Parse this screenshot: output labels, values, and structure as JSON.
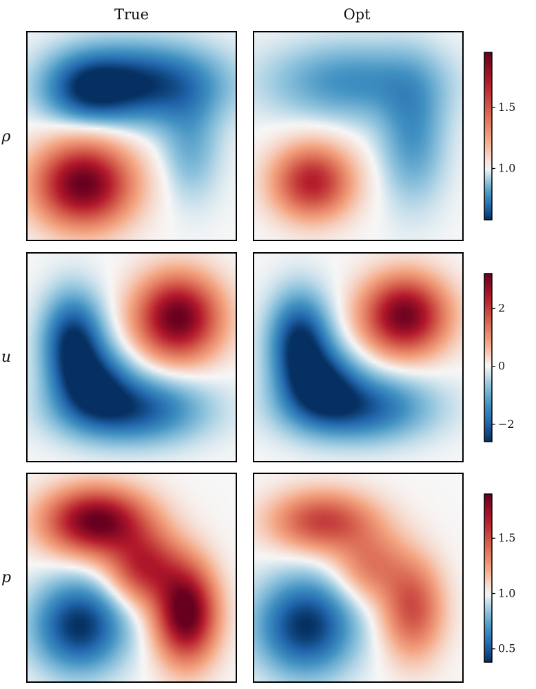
{
  "column_titles": [
    "True",
    "Opt"
  ],
  "row_labels": [
    "ρ",
    "u",
    "p"
  ],
  "colors": {
    "colormap": "RdBu_r",
    "dark_blue": "#053061",
    "blue": "#2166ac",
    "light_blue": "#92c5de",
    "white": "#f7f7f7",
    "light_red": "#f4a582",
    "red": "#b2182b",
    "dark_red": "#67001f",
    "frame": "#000000"
  },
  "chart_data": [
    {
      "type": "heatmap",
      "variable": "ρ",
      "colorbar": {
        "range": [
          0.58,
          1.95
        ],
        "ticks": [
          1.0,
          1.5
        ],
        "tick_labels": [
          "1.0",
          "1.5"
        ]
      },
      "panels": [
        {
          "column": "True",
          "background": 1.0,
          "features": [
            {
              "x": 0.27,
              "y": 0.27,
              "sx": 0.16,
              "sy": 0.14,
              "value": 1.95
            },
            {
              "x": 0.55,
              "y": 0.75,
              "sx": 0.26,
              "sy": 0.13,
              "value": 0.6
            },
            {
              "x": 0.28,
              "y": 0.72,
              "sx": 0.14,
              "sy": 0.12,
              "value": 0.75
            },
            {
              "x": 0.78,
              "y": 0.45,
              "sx": 0.1,
              "sy": 0.18,
              "value": 0.85
            }
          ]
        },
        {
          "column": "Opt",
          "background": 1.0,
          "features": [
            {
              "x": 0.28,
              "y": 0.28,
              "sx": 0.13,
              "sy": 0.12,
              "value": 1.7
            },
            {
              "x": 0.47,
              "y": 0.76,
              "sx": 0.28,
              "sy": 0.13,
              "value": 0.78
            },
            {
              "x": 0.76,
              "y": 0.5,
              "sx": 0.11,
              "sy": 0.22,
              "value": 0.8
            }
          ]
        }
      ]
    },
    {
      "type": "heatmap",
      "variable": "u",
      "colorbar": {
        "range": [
          -2.6,
          3.2
        ],
        "ticks": [
          -2,
          0,
          2
        ],
        "tick_labels": [
          "−2",
          "0",
          "2"
        ]
      },
      "panels": [
        {
          "column": "True",
          "background": 0.0,
          "features": [
            {
              "x": 0.72,
              "y": 0.69,
              "sx": 0.14,
              "sy": 0.14,
              "value": 3.2
            },
            {
              "x": 0.22,
              "y": 0.57,
              "sx": 0.1,
              "sy": 0.16,
              "value": -2.6
            },
            {
              "x": 0.5,
              "y": 0.25,
              "sx": 0.23,
              "sy": 0.11,
              "value": -2.2
            },
            {
              "x": 0.33,
              "y": 0.38,
              "sx": 0.12,
              "sy": 0.12,
              "value": -1.8
            }
          ]
        },
        {
          "column": "Opt",
          "background": 0.0,
          "features": [
            {
              "x": 0.72,
              "y": 0.7,
              "sx": 0.14,
              "sy": 0.13,
              "value": 3.1
            },
            {
              "x": 0.22,
              "y": 0.57,
              "sx": 0.1,
              "sy": 0.16,
              "value": -2.6
            },
            {
              "x": 0.5,
              "y": 0.26,
              "sx": 0.23,
              "sy": 0.11,
              "value": -2.1
            },
            {
              "x": 0.33,
              "y": 0.38,
              "sx": 0.12,
              "sy": 0.12,
              "value": -1.9
            }
          ]
        }
      ]
    },
    {
      "type": "heatmap",
      "variable": "p",
      "colorbar": {
        "range": [
          0.38,
          1.9
        ],
        "ticks": [
          0.5,
          1.0,
          1.5
        ],
        "tick_labels": [
          "0.5",
          "1.0",
          "1.5"
        ]
      },
      "panels": [
        {
          "column": "True",
          "background": 1.0,
          "features": [
            {
              "x": 0.33,
              "y": 0.77,
              "sx": 0.17,
              "sy": 0.11,
              "value": 1.9
            },
            {
              "x": 0.76,
              "y": 0.33,
              "sx": 0.1,
              "sy": 0.16,
              "value": 1.95
            },
            {
              "x": 0.56,
              "y": 0.55,
              "sx": 0.12,
              "sy": 0.12,
              "value": 1.6
            },
            {
              "x": 0.25,
              "y": 0.27,
              "sx": 0.15,
              "sy": 0.15,
              "value": 0.38
            }
          ]
        },
        {
          "column": "Opt",
          "background": 1.0,
          "features": [
            {
              "x": 0.33,
              "y": 0.77,
              "sx": 0.17,
              "sy": 0.1,
              "value": 1.55
            },
            {
              "x": 0.76,
              "y": 0.35,
              "sx": 0.1,
              "sy": 0.16,
              "value": 1.5
            },
            {
              "x": 0.56,
              "y": 0.56,
              "sx": 0.12,
              "sy": 0.12,
              "value": 1.35
            },
            {
              "x": 0.25,
              "y": 0.27,
              "sx": 0.16,
              "sy": 0.16,
              "value": 0.38
            }
          ]
        }
      ]
    }
  ]
}
